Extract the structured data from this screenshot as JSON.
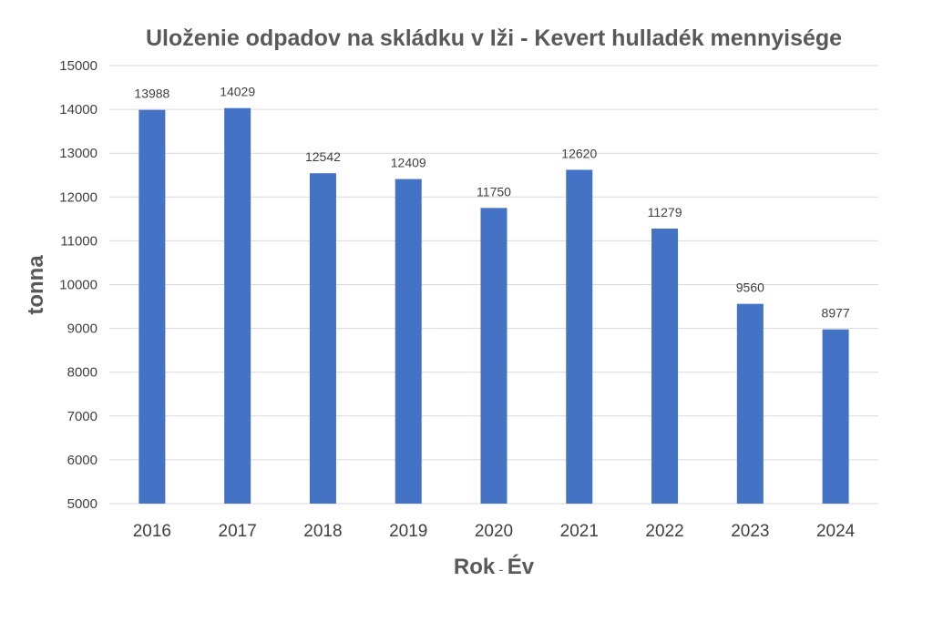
{
  "chart_data": {
    "type": "bar",
    "title": "Uloženie odpadov na skládku v Iži - Kevert hulladék mennyisége",
    "xlabel_main": "Rok",
    "xlabel_sep": "-",
    "xlabel_alt": "Év",
    "ylabel": "tonna",
    "categories": [
      "2016",
      "2017",
      "2018",
      "2019",
      "2020",
      "2021",
      "2022",
      "2023",
      "2024"
    ],
    "series": [
      {
        "values": [
          13988,
          14029,
          12542,
          12409,
          11750,
          12620,
          11279,
          9560,
          8977
        ]
      }
    ],
    "data_labels": [
      "13988",
      "14029",
      "12542",
      "12409",
      "11750",
      "12620",
      "11279",
      "9560",
      "8977"
    ],
    "ylim": [
      5000,
      15000
    ],
    "yticks": [
      "5000",
      "6000",
      "7000",
      "8000",
      "9000",
      "10000",
      "11000",
      "12000",
      "13000",
      "14000",
      "15000"
    ],
    "grid": true,
    "legend": "none",
    "colors": {
      "bar": "#4472C4",
      "grid": "#D9D9D9"
    }
  }
}
